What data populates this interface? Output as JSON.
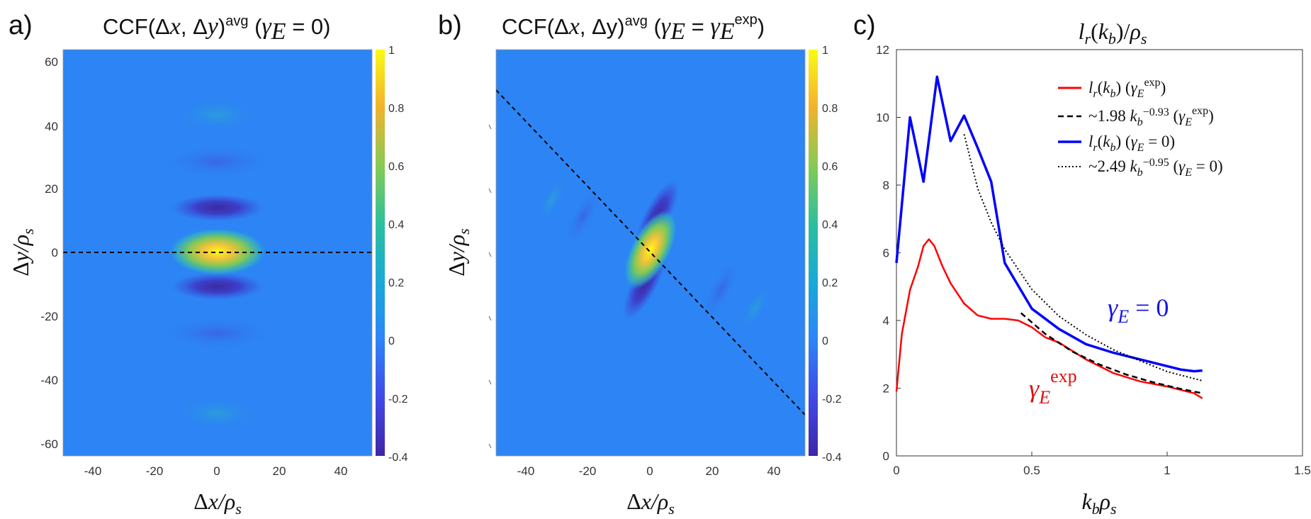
{
  "panels": {
    "a": {
      "label": "a)",
      "title": "CCF(Δx,Δy)^avg (γ_E = 0)",
      "xlabel": "Δx/ρ_s",
      "ylabel": "Δy/ρ_s",
      "xticks": [
        "-40",
        "-20",
        "0",
        "20",
        "40"
      ],
      "yticks": [
        "60",
        "40",
        "20",
        "0",
        "-20",
        "-40",
        "-60"
      ],
      "colorbar_ticks": [
        "1",
        "0.8",
        "0.6",
        "0.4",
        "0.2",
        "0",
        "-0.2",
        "-0.4"
      ]
    },
    "b": {
      "label": "b)",
      "title": "CCF(Δx,Δy)^avg (γ_E = γ_E^exp)",
      "xlabel": "Δx/ρ_s",
      "ylabel": "Δy/ρ_s",
      "xticks": [
        "-40",
        "-20",
        "0",
        "20",
        "40"
      ],
      "colorbar_ticks": [
        "1",
        "0.8",
        "0.6",
        "0.4",
        "0.2",
        "0",
        "-0.2",
        "-0.4"
      ]
    },
    "c": {
      "label": "c)",
      "title": "l_r(k_b)/ρ_s",
      "xlabel": "k_b ρ_s",
      "annotation_blue": "γ_E = 0",
      "annotation_red": "γ_E^exp"
    }
  },
  "chart_data": [
    {
      "type": "heatmap",
      "panel": "a",
      "x_range": [
        -50,
        50
      ],
      "y_range": [
        -65,
        65
      ],
      "color_range": [
        -0.4,
        1
      ],
      "colormap": "parula",
      "features": [
        {
          "kind": "max",
          "x": 0,
          "y": 0,
          "value": 1.0
        },
        {
          "kind": "min",
          "x": 0,
          "y": 15,
          "value": -0.3
        },
        {
          "kind": "min",
          "x": 0,
          "y": -11,
          "value": -0.3
        }
      ],
      "dashed_line": {
        "x": [
          -50,
          50
        ],
        "y": [
          0,
          0
        ]
      }
    },
    {
      "type": "heatmap",
      "panel": "b",
      "x_range": [
        -50,
        50
      ],
      "y_range": [
        -65,
        65
      ],
      "color_range": [
        -0.4,
        1
      ],
      "colormap": "parula",
      "features": [
        {
          "kind": "max",
          "x": 0,
          "y": 0,
          "value": 1.0
        },
        {
          "kind": "min",
          "x": 5,
          "y": 14,
          "value": -0.35
        },
        {
          "kind": "min",
          "x": -5,
          "y": -10,
          "value": -0.35
        }
      ],
      "dashed_line": {
        "x": [
          -50,
          48
        ],
        "y": [
          52,
          -51
        ]
      }
    },
    {
      "type": "line",
      "panel": "c",
      "xlim": [
        0,
        1.5
      ],
      "ylim": [
        0,
        12
      ],
      "xticks": [
        0,
        0.5,
        1,
        1.5
      ],
      "yticks": [
        0,
        2,
        4,
        6,
        8,
        10,
        12
      ],
      "legend_position": "top-right",
      "series": [
        {
          "name": "l_r(k_b) (γ_E^exp)",
          "color": "#ff0000",
          "style": "solid",
          "x": [
            0,
            0.02,
            0.05,
            0.08,
            0.1,
            0.12,
            0.14,
            0.17,
            0.2,
            0.25,
            0.3,
            0.35,
            0.4,
            0.45,
            0.5,
            0.55,
            0.6,
            0.65,
            0.7,
            0.8,
            0.9,
            1.0,
            1.1,
            1.13
          ],
          "y": [
            1.9,
            3.6,
            4.9,
            5.6,
            6.2,
            6.4,
            6.2,
            5.6,
            5.1,
            4.5,
            4.15,
            4.05,
            4.05,
            4.0,
            3.8,
            3.5,
            3.35,
            3.1,
            2.85,
            2.45,
            2.2,
            2.05,
            1.85,
            1.7
          ]
        },
        {
          "name": "~1.98 k_b^-0.93 (γ_E^exp)",
          "color": "#000000",
          "style": "dashed",
          "x": [
            0.46,
            0.55,
            0.65,
            0.75,
            0.85,
            0.95,
            1.05,
            1.13
          ],
          "y": [
            4.22,
            3.6,
            3.08,
            2.7,
            2.4,
            2.17,
            1.98,
            1.85
          ]
        },
        {
          "name": "l_r(k_b) (γ_E = 0)",
          "color": "#0000ff",
          "style": "solid",
          "x": [
            0,
            0.05,
            0.1,
            0.15,
            0.2,
            0.25,
            0.3,
            0.35,
            0.4,
            0.5,
            0.6,
            0.7,
            0.8,
            0.9,
            1.0,
            1.05,
            1.1,
            1.13
          ],
          "y": [
            5.7,
            10.0,
            8.1,
            11.2,
            9.3,
            10.05,
            9.1,
            8.1,
            5.7,
            4.35,
            3.75,
            3.3,
            3.05,
            2.85,
            2.65,
            2.55,
            2.5,
            2.52
          ]
        },
        {
          "name": "~2.49 k_b^-0.95 (γ_E = 0)",
          "color": "#000000",
          "style": "dotted",
          "x": [
            0.25,
            0.3,
            0.35,
            0.4,
            0.5,
            0.6,
            0.7,
            0.8,
            0.9,
            1.0,
            1.13
          ],
          "y": [
            9.5,
            7.9,
            6.9,
            6.1,
            4.92,
            4.13,
            3.58,
            3.14,
            2.81,
            2.49,
            2.22
          ]
        }
      ]
    }
  ]
}
